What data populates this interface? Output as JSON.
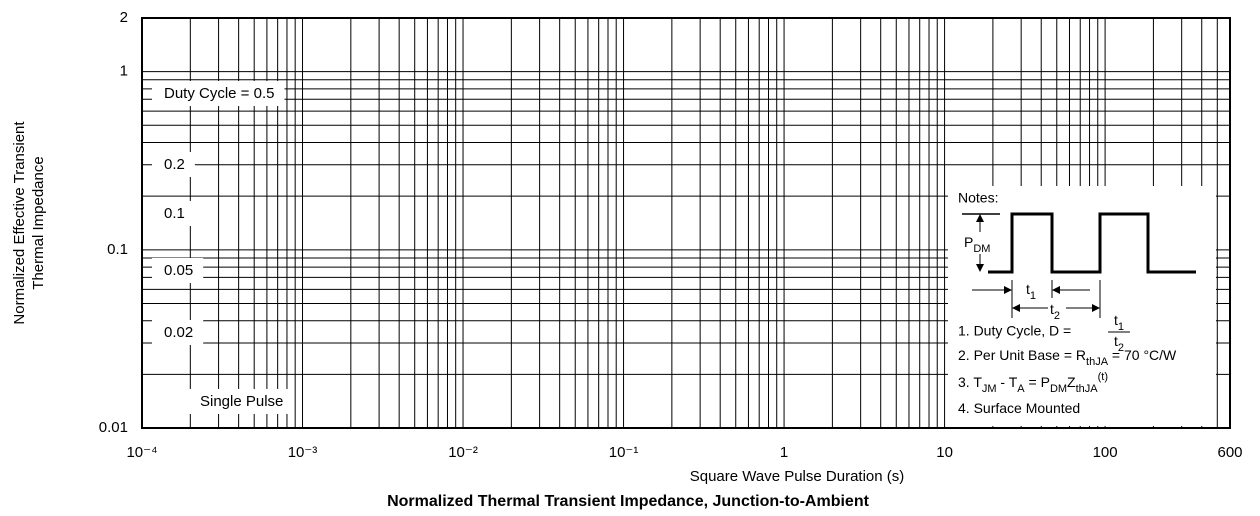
{
  "chart_data": {
    "type": "grid",
    "title": "Normalized Thermal Transient Impedance, Junction-to-Ambient",
    "xlabel": "Square Wave Pulse Duration (s)",
    "ylabel": [
      "Normalized Effective Transient",
      "Thermal Impedance"
    ],
    "xscale": "log",
    "yscale": "log",
    "xlim": [
      0.0001,
      600
    ],
    "ylim": [
      0.01,
      2
    ],
    "xticks": [
      {
        "value": 0.0001,
        "label": "10⁻⁴"
      },
      {
        "value": 0.001,
        "label": "10⁻³"
      },
      {
        "value": 0.01,
        "label": "10⁻²"
      },
      {
        "value": 0.1,
        "label": "10⁻¹"
      },
      1,
      10,
      100,
      600
    ],
    "yticks": [
      0.01,
      0.1,
      1,
      2
    ],
    "xminorticks": [
      0.0002,
      0.0003,
      0.0004,
      0.0005,
      0.0006,
      0.0007,
      0.0008,
      0.0009,
      0.002,
      0.003,
      0.004,
      0.005,
      0.006,
      0.007,
      0.008,
      0.009,
      0.02,
      0.03,
      0.04,
      0.05,
      0.06,
      0.07,
      0.08,
      0.09,
      0.2,
      0.3,
      0.4,
      0.5,
      0.6,
      0.7,
      0.8,
      0.9,
      2,
      3,
      4,
      5,
      6,
      7,
      8,
      9,
      20,
      30,
      40,
      50,
      60,
      70,
      80,
      90,
      200,
      300,
      400,
      500
    ],
    "yminorticks": [
      0.02,
      0.03,
      0.04,
      0.05,
      0.06,
      0.07,
      0.08,
      0.09,
      0.2,
      0.3,
      0.4,
      0.5,
      0.6,
      0.7,
      0.8,
      0.9
    ],
    "grid": true,
    "color": "#000000",
    "annotations": [
      "Duty Cycle = 0.5",
      "0.2",
      "0.1",
      "0.05",
      "0.02",
      "Single Pulse"
    ],
    "notes": {
      "heading": "Notes:",
      "pdm": [
        "P",
        {
          "sub": "DM"
        }
      ],
      "t1": [
        "t",
        {
          "sub": "1"
        }
      ],
      "t2": [
        "t",
        {
          "sub": "2"
        }
      ],
      "duty": {
        "text": "1. Duty Cycle, D =",
        "numerator": [
          "t",
          {
            "sub": "1"
          }
        ],
        "denominator": [
          "t",
          {
            "sub": "2"
          }
        ]
      },
      "lines": [
        [
          "2. Per Unit Base = R",
          {
            "sub": "thJA"
          },
          " = 70 °C/W"
        ],
        [
          "3. T",
          {
            "sub": "JM"
          },
          " - T",
          {
            "sub": "A"
          },
          " = P",
          {
            "sub": "DM"
          },
          "Z",
          {
            "sub": "thJA"
          },
          {
            "sup": "(t)"
          }
        ],
        [
          "4. Surface Mounted"
        ]
      ]
    }
  }
}
